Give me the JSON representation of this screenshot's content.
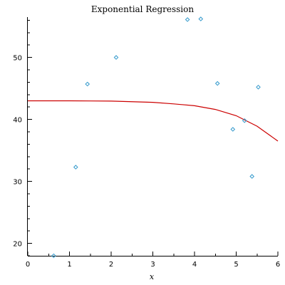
{
  "chart_data": {
    "type": "scatter",
    "title": "Exponential Regression",
    "xlabel": "x",
    "ylabel": "",
    "xlim": [
      0,
      6
    ],
    "ylim": [
      18,
      56.5
    ],
    "xticks": [
      "0",
      "1",
      "2",
      "3",
      "4",
      "5",
      "6"
    ],
    "yticks": [
      "20",
      "30",
      "40",
      "50"
    ],
    "grid": false,
    "series": [
      {
        "kind": "points",
        "color": "#3399cc",
        "x": [
          0.62,
          1.15,
          1.43,
          2.12,
          3.83,
          4.15,
          4.55,
          4.92,
          5.2,
          5.38,
          5.53
        ],
        "y": [
          18.0,
          32.3,
          45.7,
          50.0,
          56.1,
          56.2,
          45.8,
          38.4,
          39.8,
          30.8,
          45.2
        ]
      },
      {
        "kind": "curve",
        "color": "#cc0000",
        "x": [
          0,
          1,
          2,
          3,
          3.5,
          4,
          4.5,
          5,
          5.5,
          6
        ],
        "y": [
          43.0,
          43.0,
          42.95,
          42.75,
          42.5,
          42.2,
          41.6,
          40.6,
          38.9,
          36.5
        ]
      }
    ]
  }
}
